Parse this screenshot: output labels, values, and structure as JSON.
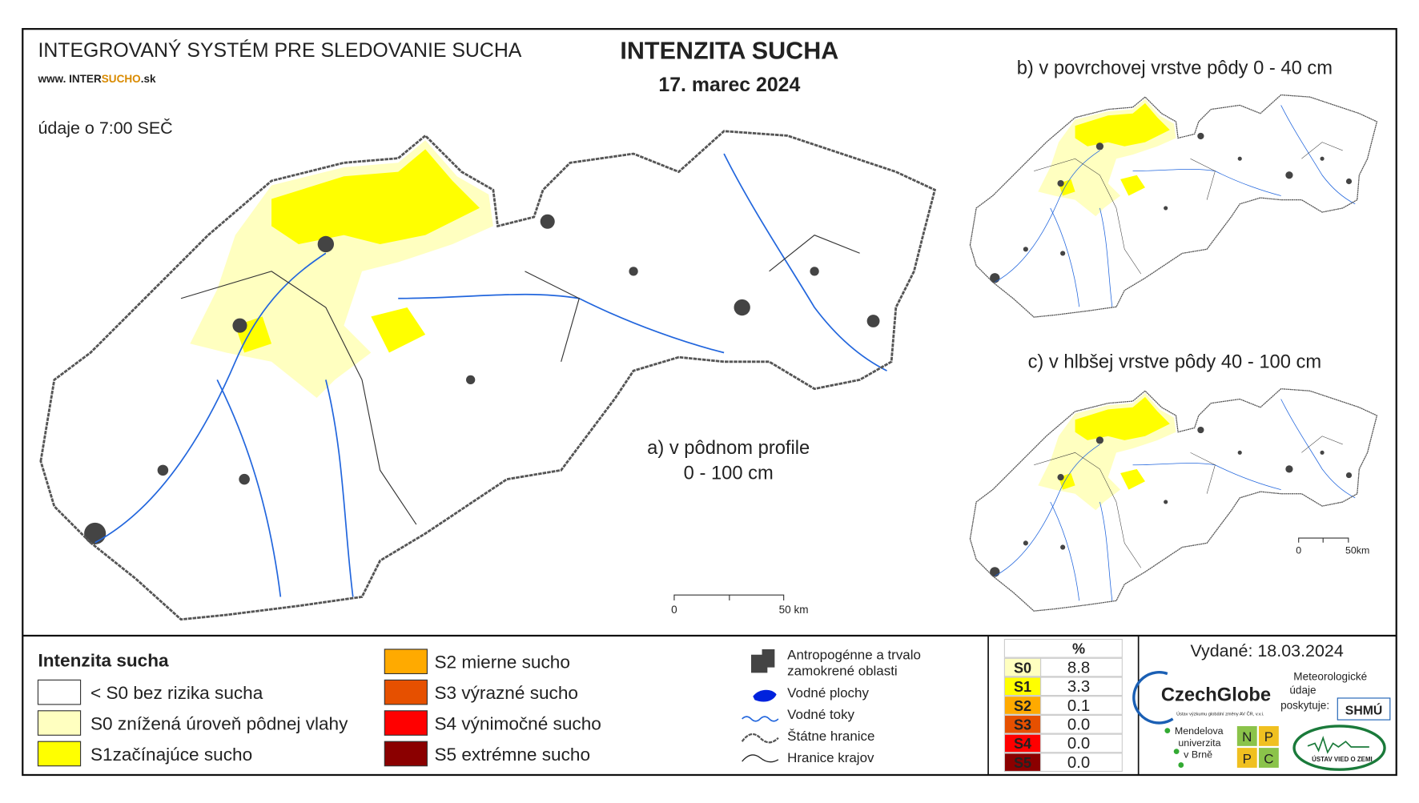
{
  "header": {
    "system": "INTEGROVANÝ SYSTÉM PRE SLEDOVANIE SUCHA",
    "website_prefix": "www. INTER",
    "website_highlight": "SUCHO",
    "website_suffix": ".sk",
    "data_time": "údaje o 7:00 SEČ",
    "title": "INTENZITA SUCHA",
    "date": "17. marec 2024"
  },
  "maps": {
    "a_line1": "a) v pôdnom profile",
    "a_line2": "0 - 100 cm",
    "b": "b) v povrchovej vrstve pôdy 0 - 40 cm",
    "c": "c) v hlbšej vrstve pôdy 40 - 100 cm",
    "scale_main_0": "0",
    "scale_main_50": "50 km",
    "scale_small_0": "0",
    "scale_small_50": "50km"
  },
  "legend": {
    "title": "Intenzita sucha",
    "items": [
      {
        "color": "#ffffff",
        "label": "< S0 bez rizika sucha"
      },
      {
        "color": "#ffffc0",
        "label": "S0 znížená úroveň pôdnej vlahy"
      },
      {
        "color": "#ffff00",
        "label": "S1začínajúce sucho"
      },
      {
        "color": "#ffaa00",
        "label": "S2 mierne sucho"
      },
      {
        "color": "#e65000",
        "label": "S3 výrazné sucho"
      },
      {
        "color": "#ff0000",
        "label": "S4 výnimočné sucho"
      },
      {
        "color": "#8b0000",
        "label": "S5 extrémne sucho"
      }
    ]
  },
  "symbols": {
    "urban_1": "Antropogénne a trvalo",
    "urban_2": "zamokrené oblasti",
    "water": "Vodné plochy",
    "rivers": "Vodné toky",
    "state_border": "Štátne hranice",
    "region_border": "Hranice krajov"
  },
  "table": {
    "header": "%",
    "rows": [
      {
        "class": "S0",
        "color": "#ffffc0",
        "percent": "8.8"
      },
      {
        "class": "S1",
        "color": "#ffff00",
        "percent": "3.3"
      },
      {
        "class": "S2",
        "color": "#ffaa00",
        "percent": "0.1"
      },
      {
        "class": "S3",
        "color": "#e65000",
        "percent": "0.0"
      },
      {
        "class": "S4",
        "color": "#ff0000",
        "percent": "0.0"
      },
      {
        "class": "S5",
        "color": "#8b0000",
        "percent": "0.0"
      }
    ]
  },
  "issued": "Vydané: 18.03.2024",
  "logos": {
    "czechglobe": "CzechGlobe",
    "czechglobe_sub": "Ústav výzkumu globální změny AV ČR, v.v.i.",
    "met_1": "Meteorologické",
    "met_2": "údaje",
    "met_3": "poskytuje:",
    "shmu": "SHMÚ",
    "mendel_1": "Mendelova",
    "mendel_2": "univerzita",
    "mendel_3": "v Brně",
    "npc_1": "N",
    "npc_2": "P",
    "npc_3": "P",
    "npc_4": "C",
    "uvz": "ÚSTAV VIED O ZEMI"
  }
}
